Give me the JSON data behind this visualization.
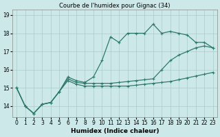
{
  "title": "Courbe de l'humidex pour Gignac (34)",
  "xlabel": "Humidex (Indice chaleur)",
  "background_color": "#cce8e8",
  "grid_color": "#aacccc",
  "line_color": "#2d7a6a",
  "x_values": [
    0,
    1,
    2,
    3,
    4,
    5,
    6,
    7,
    8,
    9,
    10,
    11,
    12,
    13,
    14,
    15,
    16,
    17,
    18,
    19,
    20,
    21,
    22,
    23
  ],
  "line1": [
    15.0,
    14.0,
    13.6,
    14.1,
    14.2,
    14.8,
    15.6,
    15.4,
    15.3,
    15.6,
    16.5,
    17.8,
    17.5,
    18.0,
    18.0,
    18.0,
    18.5,
    18.0,
    18.1,
    18.0,
    17.9,
    17.5,
    17.5,
    17.2
  ],
  "line2": [
    15.0,
    14.0,
    13.6,
    14.1,
    14.2,
    14.8,
    15.5,
    15.3,
    15.25,
    15.25,
    15.25,
    15.25,
    15.3,
    15.35,
    15.4,
    15.45,
    15.5,
    16.0,
    16.5,
    16.8,
    17.0,
    17.2,
    17.3,
    17.2
  ],
  "line3": [
    15.0,
    14.0,
    13.6,
    14.1,
    14.2,
    14.8,
    15.4,
    15.2,
    15.1,
    15.1,
    15.1,
    15.1,
    15.1,
    15.1,
    15.15,
    15.2,
    15.25,
    15.3,
    15.35,
    15.45,
    15.55,
    15.65,
    15.75,
    15.85
  ],
  "ylim_min": 13.4,
  "ylim_max": 19.3,
  "yticks": [
    14,
    15,
    16,
    17,
    18,
    19
  ],
  "tick_fontsize": 5.5,
  "xlabel_fontsize": 6.5,
  "title_fontsize": 6
}
